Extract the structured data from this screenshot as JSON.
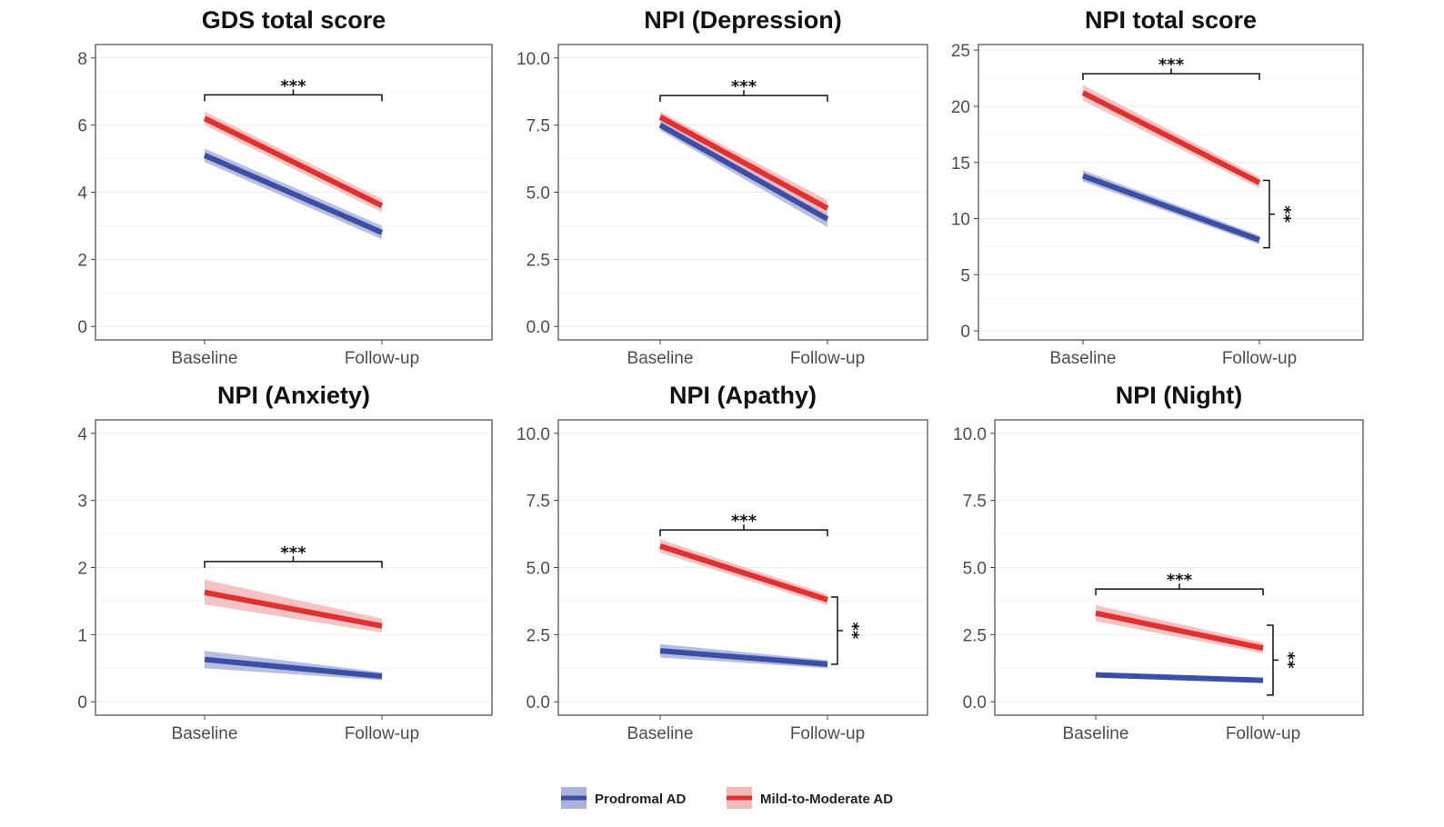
{
  "colors": {
    "prodromal": "#3c4fa6",
    "prodromal_band": "#aab3dc",
    "mild": "#e03030",
    "mild_band": "#f3b8b8",
    "panel_border": "#555555",
    "grid": "#ececec"
  },
  "legend": {
    "items": [
      {
        "label": "Prodromal AD",
        "color_key": "prodromal"
      },
      {
        "label": "Mild-to-Moderate AD",
        "color_key": "mild"
      }
    ]
  },
  "chart_data": [
    {
      "type": "line",
      "title": "GDS total score",
      "categories": [
        "Baseline",
        "Follow-up"
      ],
      "ylim": [
        -0.4,
        8.4
      ],
      "yticks": [
        0,
        2,
        4,
        6,
        8
      ],
      "ytick_labels": [
        "0",
        "2",
        "4",
        "6",
        "8"
      ],
      "series": [
        {
          "name": "Prodromal AD",
          "values": [
            5.1,
            2.8
          ],
          "lower": [
            4.9,
            2.6
          ],
          "upper": [
            5.3,
            3.0
          ]
        },
        {
          "name": "Mild-to-Moderate AD",
          "values": [
            6.2,
            3.6
          ],
          "lower": [
            6.0,
            3.4
          ],
          "upper": [
            6.4,
            3.8
          ]
        }
      ],
      "annotations": [
        {
          "kind": "time",
          "label": "***",
          "y": 6.9
        }
      ]
    },
    {
      "type": "line",
      "title": "NPI (Depression)",
      "categories": [
        "Baseline",
        "Follow-up"
      ],
      "ylim": [
        -0.5,
        10.5
      ],
      "yticks": [
        0,
        2.5,
        5,
        7.5,
        10
      ],
      "ytick_labels": [
        "0.0",
        "2.5",
        "5.0",
        "7.5",
        "10.0"
      ],
      "series": [
        {
          "name": "Prodromal AD",
          "values": [
            7.5,
            4.0
          ],
          "lower": [
            7.3,
            3.7
          ],
          "upper": [
            7.7,
            4.3
          ]
        },
        {
          "name": "Mild-to-Moderate AD",
          "values": [
            7.8,
            4.4
          ],
          "lower": [
            7.6,
            4.1
          ],
          "upper": [
            8.0,
            4.7
          ]
        }
      ],
      "annotations": [
        {
          "kind": "time",
          "label": "***",
          "y": 8.6
        }
      ]
    },
    {
      "type": "line",
      "title": "NPI total score",
      "categories": [
        "Baseline",
        "Follow-up"
      ],
      "ylim": [
        -0.8,
        25.5
      ],
      "yticks": [
        0,
        5,
        10,
        15,
        20,
        25
      ],
      "ytick_labels": [
        "0",
        "5",
        "10",
        "15",
        "20",
        "25"
      ],
      "series": [
        {
          "name": "Prodromal AD",
          "values": [
            13.8,
            8.1
          ],
          "lower": [
            13.3,
            7.7
          ],
          "upper": [
            14.3,
            8.5
          ]
        },
        {
          "name": "Mild-to-Moderate AD",
          "values": [
            21.2,
            13.2
          ],
          "lower": [
            20.5,
            12.7
          ],
          "upper": [
            21.9,
            13.7
          ]
        }
      ],
      "annotations": [
        {
          "kind": "time",
          "label": "***",
          "y": 22.9
        },
        {
          "kind": "group",
          "label": "**",
          "y_low": 7.4,
          "y_high": 13.4
        }
      ]
    },
    {
      "type": "line",
      "title": "NPI (Anxiety)",
      "categories": [
        "Baseline",
        "Follow-up"
      ],
      "ylim": [
        -0.2,
        4.2
      ],
      "yticks": [
        0,
        1,
        2,
        3,
        4
      ],
      "ytick_labels": [
        "0",
        "1",
        "2",
        "3",
        "4"
      ],
      "series": [
        {
          "name": "Prodromal AD",
          "values": [
            0.63,
            0.38
          ],
          "lower": [
            0.5,
            0.32
          ],
          "upper": [
            0.76,
            0.44
          ]
        },
        {
          "name": "Mild-to-Moderate AD",
          "values": [
            1.63,
            1.13
          ],
          "lower": [
            1.45,
            1.03
          ],
          "upper": [
            1.82,
            1.24
          ]
        }
      ],
      "annotations": [
        {
          "kind": "time",
          "label": "***",
          "y": 2.09
        }
      ]
    },
    {
      "type": "line",
      "title": "NPI (Apathy)",
      "categories": [
        "Baseline",
        "Follow-up"
      ],
      "ylim": [
        -0.5,
        10.5
      ],
      "yticks": [
        0,
        2.5,
        5,
        7.5,
        10
      ],
      "ytick_labels": [
        "0.0",
        "2.5",
        "5.0",
        "7.5",
        "10.0"
      ],
      "series": [
        {
          "name": "Prodromal AD",
          "values": [
            1.9,
            1.4
          ],
          "lower": [
            1.65,
            1.25
          ],
          "upper": [
            2.15,
            1.55
          ]
        },
        {
          "name": "Mild-to-Moderate AD",
          "values": [
            5.8,
            3.8
          ],
          "lower": [
            5.55,
            3.6
          ],
          "upper": [
            6.05,
            4.0
          ]
        }
      ],
      "annotations": [
        {
          "kind": "time",
          "label": "***",
          "y": 6.4
        },
        {
          "kind": "group",
          "label": "**",
          "y_low": 1.4,
          "y_high": 3.9
        }
      ]
    },
    {
      "type": "line",
      "title": "NPI (Night)",
      "categories": [
        "Baseline",
        "Follow-up"
      ],
      "ylim": [
        -0.5,
        10.5
      ],
      "yticks": [
        0,
        2.5,
        5,
        7.5,
        10
      ],
      "ytick_labels": [
        "0.0",
        "2.5",
        "5.0",
        "7.5",
        "10.0"
      ],
      "series": [
        {
          "name": "Prodromal AD",
          "values": [
            1.0,
            0.8
          ],
          "lower": [
            0.92,
            0.74
          ],
          "upper": [
            1.08,
            0.86
          ]
        },
        {
          "name": "Mild-to-Moderate AD",
          "values": [
            3.3,
            2.0
          ],
          "lower": [
            3.0,
            1.8
          ],
          "upper": [
            3.6,
            2.2
          ]
        }
      ],
      "annotations": [
        {
          "kind": "time",
          "label": "***",
          "y": 4.2
        },
        {
          "kind": "group",
          "label": "**",
          "y_low": 0.25,
          "y_high": 2.85
        }
      ]
    }
  ]
}
